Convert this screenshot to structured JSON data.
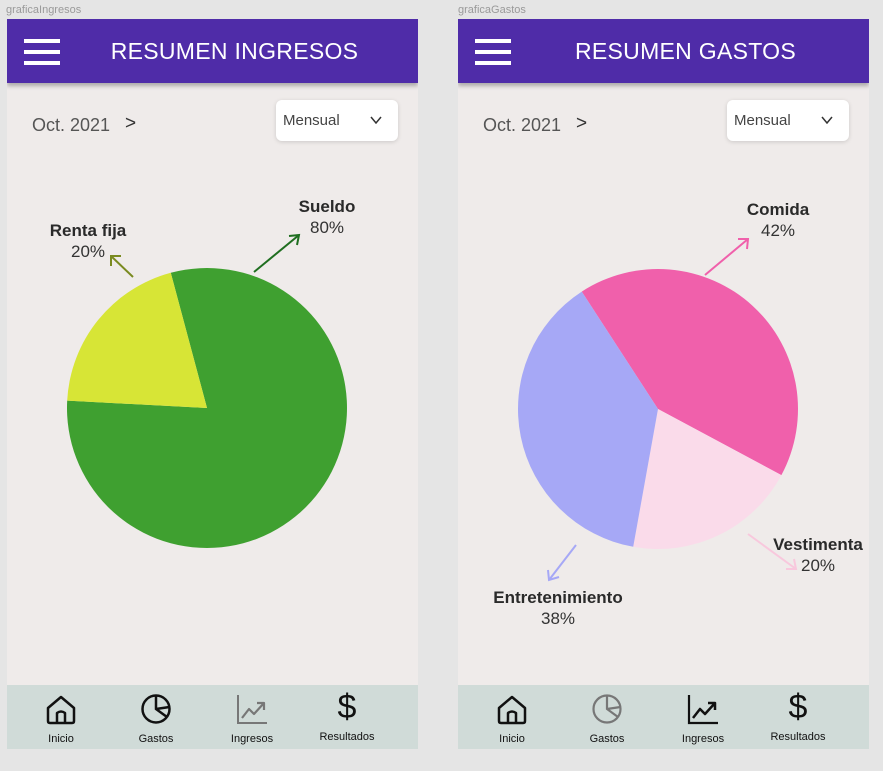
{
  "frames": [
    {
      "frame_label": "graficaIngresos",
      "title": "RESUMEN INGRESOS",
      "period": "Oct. 2021",
      "period_next": ">",
      "select": {
        "value": "Mensual"
      },
      "nav": [
        {
          "label": "Inicio",
          "icon": "home-icon",
          "active": true
        },
        {
          "label": "Gastos",
          "icon": "pie-chart-icon",
          "active": true
        },
        {
          "label": "Ingresos",
          "icon": "trending-up-icon",
          "active": false
        },
        {
          "label": "Resultados",
          "icon": "dollar-icon",
          "active": true
        }
      ],
      "chart_data": {
        "type": "pie",
        "slices": [
          {
            "name": "Sueldo",
            "label": "80%",
            "value": 80,
            "color": "#3fa030"
          },
          {
            "name": "Renta fija",
            "label": "20%",
            "value": 20,
            "color": "#d7e536"
          }
        ]
      }
    },
    {
      "frame_label": "graficaGastos",
      "title": "RESUMEN GASTOS",
      "period": "Oct. 2021",
      "period_next": ">",
      "select": {
        "value": "Mensual"
      },
      "nav": [
        {
          "label": "Inicio",
          "icon": "home-icon",
          "active": true
        },
        {
          "label": "Gastos",
          "icon": "pie-chart-icon",
          "active": false
        },
        {
          "label": "Ingresos",
          "icon": "trending-up-icon",
          "active": true
        },
        {
          "label": "Resultados",
          "icon": "dollar-icon",
          "active": true
        }
      ],
      "chart_data": {
        "type": "pie",
        "slices": [
          {
            "name": "Comida",
            "label": "42%",
            "value": 42,
            "color": "#f060ab"
          },
          {
            "name": "Vestimenta",
            "label": "20%",
            "value": 20,
            "color": "#fadbea"
          },
          {
            "name": "Entretenimiento",
            "label": "38%",
            "value": 38,
            "color": "#a6a8f6"
          }
        ]
      }
    }
  ]
}
